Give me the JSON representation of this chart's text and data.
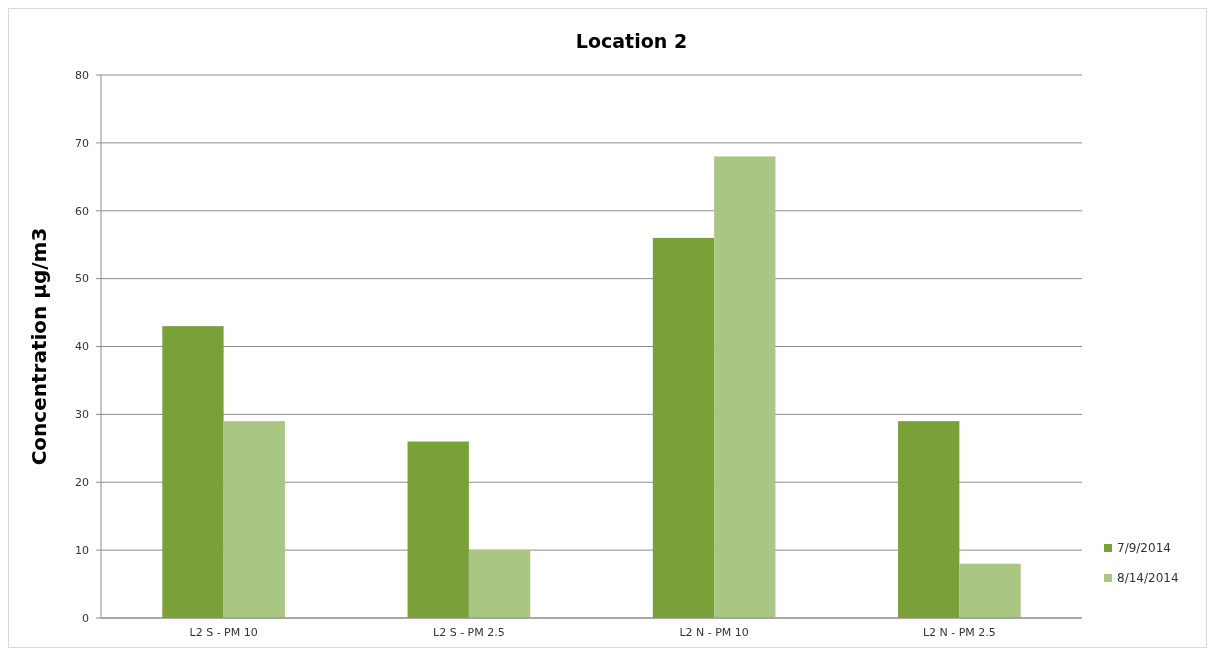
{
  "chart_data": {
    "type": "bar",
    "title": "Location 2",
    "ylabel": "Concentration µg/m3",
    "categories": [
      "L2 S - PM 10",
      "L2 S - PM 2.5",
      "L2 N - PM 10",
      "L2 N - PM 2.5"
    ],
    "series": [
      {
        "name": "7/9/2014",
        "color": "#7aa03a",
        "values": [
          43,
          26,
          56,
          29
        ]
      },
      {
        "name": "8/14/2014",
        "color": "#a9c682",
        "values": [
          29,
          10,
          68,
          8
        ]
      }
    ],
    "ylim": [
      0,
      80
    ],
    "yticks": [
      0,
      10,
      20,
      30,
      40,
      50,
      60,
      70,
      80
    ],
    "grid": "y",
    "legend": "right"
  }
}
